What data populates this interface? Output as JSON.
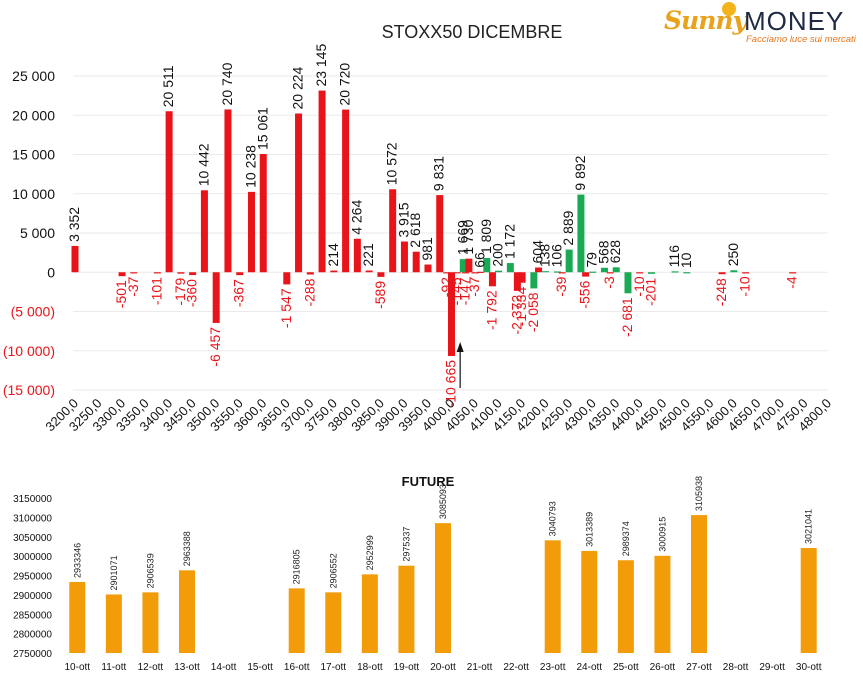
{
  "logo": {
    "brand_sunny": "Sunny",
    "brand_money": "MONEY",
    "tagline": "Facciamo luce sui mercati"
  },
  "chart_data": [
    {
      "type": "bar",
      "title": "STOXX50 DICEMBRE",
      "ylim": [
        -15000,
        25000
      ],
      "yticks": [
        25000,
        20000,
        15000,
        10000,
        5000,
        0,
        -5000,
        -10000,
        -15000
      ],
      "ytick_labels": [
        "25 000",
        "20 000",
        "15 000",
        "10 000",
        "5 000",
        "0",
        "(5 000)",
        "(10 000)",
        "(15 000)"
      ],
      "categories": [
        "3200,0",
        "3250,0",
        "3300,0",
        "3350,0",
        "3400,0",
        "3450,0",
        "3500,0",
        "3550,0",
        "3600,0",
        "3650,0",
        "3700,0",
        "3750,0",
        "3800,0",
        "3850,0",
        "3900,0",
        "3950,0",
        "4000,0",
        "4050,0",
        "4100,0",
        "4150,0",
        "4200,0",
        "4250,0",
        "4300,0",
        "4350,0",
        "4400,0",
        "4450,0",
        "4500,0",
        "4550,0",
        "4600,0",
        "4650,0",
        "4700,0",
        "4750,0",
        "4800,0"
      ],
      "x_range": [
        3200,
        4800
      ],
      "grid": true,
      "colors": {
        "red": "#e8141a",
        "green": "#1aaa55",
        "axis_text": "#e8141a"
      },
      "bars": [
        {
          "strike": 3200,
          "value": 3352,
          "label": "3 352",
          "color": "red"
        },
        {
          "strike": 3300,
          "value": -501,
          "label": "-501",
          "color": "red"
        },
        {
          "strike": 3325,
          "value": -37,
          "label": "-37",
          "color": "red"
        },
        {
          "strike": 3375,
          "value": -101,
          "label": "-101",
          "color": "red"
        },
        {
          "strike": 3400,
          "value": 20511,
          "label": "20 511",
          "color": "red"
        },
        {
          "strike": 3425,
          "value": -179,
          "label": "-179",
          "color": "red"
        },
        {
          "strike": 3450,
          "value": -360,
          "label": "-360",
          "color": "red"
        },
        {
          "strike": 3475,
          "value": 10442,
          "label": "10 442",
          "color": "red"
        },
        {
          "strike": 3500,
          "value": -6457,
          "label": "-6 457",
          "color": "red"
        },
        {
          "strike": 3525,
          "value": 20740,
          "label": "20 740",
          "color": "red"
        },
        {
          "strike": 3550,
          "value": -367,
          "label": "-367",
          "color": "red"
        },
        {
          "strike": 3575,
          "value": 10238,
          "label": "10 238",
          "color": "red"
        },
        {
          "strike": 3600,
          "value": 15061,
          "label": "15 061",
          "color": "red"
        },
        {
          "strike": 3650,
          "value": -1547,
          "label": "-1 547",
          "color": "red"
        },
        {
          "strike": 3675,
          "value": 20224,
          "label": "20 224",
          "color": "red"
        },
        {
          "strike": 3700,
          "value": -288,
          "label": "-288",
          "color": "red"
        },
        {
          "strike": 3725,
          "value": 23145,
          "label": "23 145",
          "color": "red"
        },
        {
          "strike": 3750,
          "value": 214,
          "label": "214",
          "color": "red"
        },
        {
          "strike": 3775,
          "value": 20720,
          "label": "20 720",
          "color": "red"
        },
        {
          "strike": 3800,
          "value": 4264,
          "label": "4 264",
          "color": "red"
        },
        {
          "strike": 3825,
          "value": 221,
          "label": "221",
          "color": "red"
        },
        {
          "strike": 3850,
          "value": -589,
          "label": "-589",
          "color": "red"
        },
        {
          "strike": 3875,
          "value": 10572,
          "label": "10 572",
          "color": "red"
        },
        {
          "strike": 3900,
          "value": 3915,
          "label": "3 915",
          "color": "red"
        },
        {
          "strike": 3925,
          "value": 2618,
          "label": "2 618",
          "color": "red"
        },
        {
          "strike": 3950,
          "value": 981,
          "label": "981",
          "color": "red"
        },
        {
          "strike": 3975,
          "value": 9831,
          "label": "9 831",
          "color": "red"
        },
        {
          "strike": 3990,
          "value": -92,
          "label": "-92",
          "color": "red"
        },
        {
          "strike": 4000,
          "value": -10665,
          "label": "-10 665",
          "color": "red"
        },
        {
          "strike": 4012,
          "value": -145,
          "label": "-145",
          "color": "red"
        },
        {
          "strike": 4025,
          "value": 1669,
          "label": "1 669",
          "color": "green"
        },
        {
          "strike": 4030,
          "value": -147,
          "label": "-147",
          "color": "red"
        },
        {
          "strike": 4037,
          "value": 1730,
          "label": "1 730",
          "color": "red"
        },
        {
          "strike": 4050,
          "value": -37,
          "label": "-37",
          "color": "red"
        },
        {
          "strike": 4062,
          "value": 66,
          "label": "66",
          "color": "red"
        },
        {
          "strike": 4075,
          "value": 1809,
          "label": "1 809",
          "color": "green"
        },
        {
          "strike": 4087,
          "value": -1792,
          "label": "-1 792",
          "color": "red"
        },
        {
          "strike": 4100,
          "value": 200,
          "label": "200",
          "color": "green"
        },
        {
          "strike": 4125,
          "value": 1172,
          "label": "1 172",
          "color": "green"
        },
        {
          "strike": 4140,
          "value": -2372,
          "label": "-2 372",
          "color": "red"
        },
        {
          "strike": 4150,
          "value": -1334,
          "label": "-1 334",
          "color": "red"
        },
        {
          "strike": 4175,
          "value": -2058,
          "label": "-2 058",
          "color": "green"
        },
        {
          "strike": 4185,
          "value": 604,
          "label": "604",
          "color": "red"
        },
        {
          "strike": 4200,
          "value": 138,
          "label": "138",
          "color": "green"
        },
        {
          "strike": 4225,
          "value": 106,
          "label": "106",
          "color": "green"
        },
        {
          "strike": 4235,
          "value": -39,
          "label": "-39",
          "color": "red"
        },
        {
          "strike": 4250,
          "value": 2889,
          "label": "2 889",
          "color": "green"
        },
        {
          "strike": 4275,
          "value": 9892,
          "label": "9 892",
          "color": "green"
        },
        {
          "strike": 4285,
          "value": -556,
          "label": "-556",
          "color": "red"
        },
        {
          "strike": 4300,
          "value": 79,
          "label": "79",
          "color": "green"
        },
        {
          "strike": 4325,
          "value": 568,
          "label": "568",
          "color": "green"
        },
        {
          "strike": 4337,
          "value": -3,
          "label": "-3",
          "color": "red"
        },
        {
          "strike": 4350,
          "value": 628,
          "label": "628",
          "color": "green"
        },
        {
          "strike": 4375,
          "value": -2681,
          "label": "-2 681",
          "color": "green"
        },
        {
          "strike": 4400,
          "value": -10,
          "label": "-10",
          "color": "red"
        },
        {
          "strike": 4425,
          "value": -201,
          "label": "-201",
          "color": "green"
        },
        {
          "strike": 4475,
          "value": 116,
          "label": "116",
          "color": "green"
        },
        {
          "strike": 4500,
          "value": 10,
          "label": "10",
          "color": "green"
        },
        {
          "strike": 4575,
          "value": -248,
          "label": "-248",
          "color": "red"
        },
        {
          "strike": 4600,
          "value": 250,
          "label": "250",
          "color": "green"
        },
        {
          "strike": 4625,
          "value": -10,
          "label": "-10",
          "color": "red"
        },
        {
          "strike": 4725,
          "value": -4,
          "label": "-4",
          "color": "red"
        }
      ],
      "arrow_strike": 4012
    },
    {
      "type": "bar",
      "title": "FUTURE",
      "ylim": [
        2750000,
        3150000
      ],
      "yticks": [
        3150000,
        3100000,
        3050000,
        3000000,
        2950000,
        2900000,
        2850000,
        2800000,
        2750000
      ],
      "ytick_labels": [
        "3150000",
        "3100000",
        "3050000",
        "3000000",
        "2950000",
        "2900000",
        "2850000",
        "2800000",
        "2750000"
      ],
      "categories": [
        "10-ott",
        "11-ott",
        "12-ott",
        "13-ott",
        "14-ott",
        "15-ott",
        "16-ott",
        "17-ott",
        "18-ott",
        "19-ott",
        "20-ott",
        "21-ott",
        "22-ott",
        "23-ott",
        "24-ott",
        "25-ott",
        "26-ott",
        "27-ott",
        "28-ott",
        "29-ott",
        "30-ott"
      ],
      "values": [
        2933346,
        2901071,
        2906539,
        2963388,
        null,
        null,
        2916805,
        2906552,
        2952999,
        2975337,
        3085093,
        null,
        null,
        3040793,
        3013389,
        2989374,
        3000915,
        3105938,
        null,
        null,
        3021041
      ],
      "value_labels": [
        "2933346",
        "2901071",
        "2906539",
        "2963388",
        "",
        "",
        "2916805",
        "2906552",
        "2952999",
        "2975337",
        "3085093",
        "",
        "",
        "3040793",
        "3013389",
        "2989374",
        "3000915",
        "3105938",
        "",
        "",
        "3021041"
      ],
      "color": "#f29c0a",
      "grid": false
    }
  ]
}
